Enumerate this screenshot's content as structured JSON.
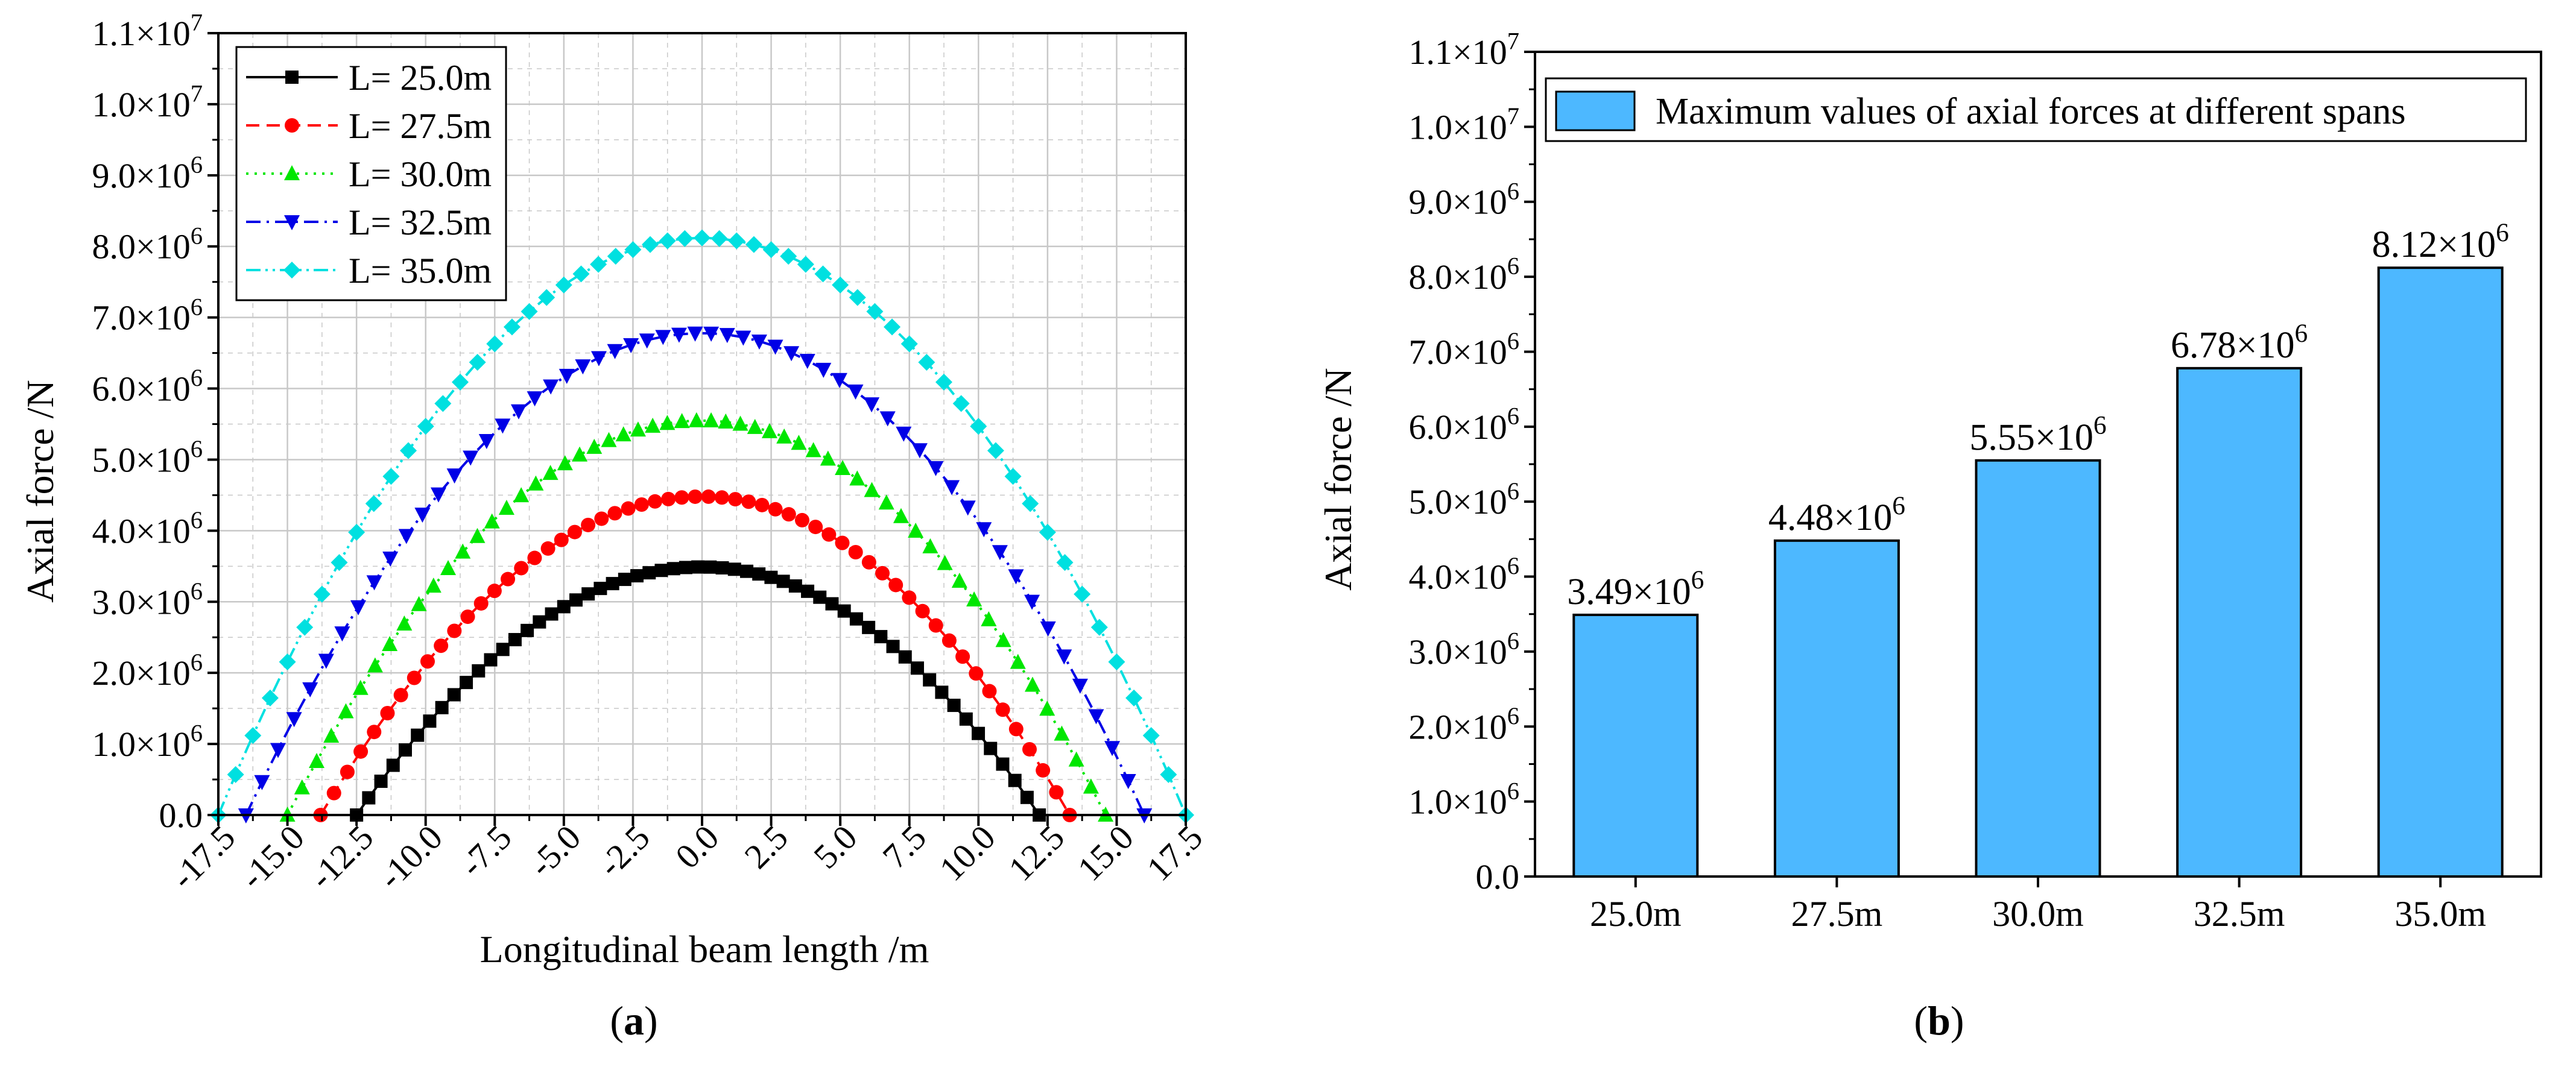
{
  "colors": {
    "grid": "#c8c8c8",
    "axis": "#000000",
    "bar_fill": "#4db8ff",
    "bar_stroke": "#000000",
    "series": [
      "#000000",
      "#ff0000",
      "#00e600",
      "#0000e6",
      "#00e0e0"
    ]
  },
  "panels": {
    "a_label": "a",
    "b_label": "b"
  },
  "chart_data": [
    {
      "id": "a",
      "type": "line",
      "xlabel": "Longitudinal beam length /m",
      "ylabel": "Axial force /N",
      "xlim": [
        -17.5,
        17.5
      ],
      "ylim": [
        0,
        11000000
      ],
      "xticks": [
        -17.5,
        -15.0,
        -12.5,
        -10.0,
        -7.5,
        -5.0,
        -2.5,
        0.0,
        2.5,
        5.0,
        7.5,
        10.0,
        12.5,
        15.0,
        17.5
      ],
      "xtick_labels": [
        "-17.5",
        "-15.0",
        "-12.5",
        "-10.0",
        "-7.5",
        "-5.0",
        "-2.5",
        "0.0",
        "2.5",
        "5.0",
        "7.5",
        "10.0",
        "12.5",
        "15.0",
        "17.5"
      ],
      "ytick_labels": [
        {
          "mant": "0.0",
          "exp": ""
        },
        {
          "mant": "1.0×10",
          "exp": "6"
        },
        {
          "mant": "2.0×10",
          "exp": "6"
        },
        {
          "mant": "3.0×10",
          "exp": "6"
        },
        {
          "mant": "4.0×10",
          "exp": "6"
        },
        {
          "mant": "5.0×10",
          "exp": "6"
        },
        {
          "mant": "6.0×10",
          "exp": "6"
        },
        {
          "mant": "7.0×10",
          "exp": "6"
        },
        {
          "mant": "8.0×10",
          "exp": "6"
        },
        {
          "mant": "9.0×10",
          "exp": "6"
        },
        {
          "mant": "1.0×10",
          "exp": "7"
        },
        {
          "mant": "1.1×10",
          "exp": "7"
        }
      ],
      "grid": true,
      "legend": "top-left",
      "series": [
        {
          "name": "L= 25.0m",
          "span": 25.0,
          "peak": 3490000,
          "x_zero": [
            -12.5,
            12.2
          ],
          "marker": "square",
          "dash": "solid"
        },
        {
          "name": "L= 27.5m",
          "span": 27.5,
          "peak": 4480000,
          "x_zero": [
            -13.8,
            13.3
          ],
          "marker": "circle",
          "dash": "dash"
        },
        {
          "name": "L= 30.0m",
          "span": 30.0,
          "peak": 5550000,
          "x_zero": [
            -15.0,
            14.6
          ],
          "marker": "triangle-up",
          "dash": "dot"
        },
        {
          "name": "L= 32.5m",
          "span": 32.5,
          "peak": 6780000,
          "x_zero": [
            -16.5,
            16.0
          ],
          "marker": "triangle-down",
          "dash": "dashdot"
        },
        {
          "name": "L= 35.0m",
          "span": 35.0,
          "peak": 8120000,
          "x_zero": [
            -17.5,
            17.5
          ],
          "marker": "diamond",
          "dash": "dashdotdot"
        }
      ]
    },
    {
      "id": "b",
      "type": "bar",
      "xlabel": "",
      "ylabel": "Axial force /N",
      "ylim": [
        0,
        11000000
      ],
      "categories": [
        "25.0m",
        "27.5m",
        "30.0m",
        "32.5m",
        "35.0m"
      ],
      "values": [
        3490000,
        4480000,
        5550000,
        6780000,
        8120000
      ],
      "data_labels": [
        {
          "mant": "3.49×10",
          "exp": "6"
        },
        {
          "mant": "4.48×10",
          "exp": "6"
        },
        {
          "mant": "5.55×10",
          "exp": "6"
        },
        {
          "mant": "6.78×10",
          "exp": "6"
        },
        {
          "mant": "8.12×10",
          "exp": "6"
        }
      ],
      "ytick_labels": [
        {
          "mant": "0.0",
          "exp": ""
        },
        {
          "mant": "1.0×10",
          "exp": "6"
        },
        {
          "mant": "2.0×10",
          "exp": "6"
        },
        {
          "mant": "3.0×10",
          "exp": "6"
        },
        {
          "mant": "4.0×10",
          "exp": "6"
        },
        {
          "mant": "5.0×10",
          "exp": "6"
        },
        {
          "mant": "6.0×10",
          "exp": "6"
        },
        {
          "mant": "7.0×10",
          "exp": "6"
        },
        {
          "mant": "8.0×10",
          "exp": "6"
        },
        {
          "mant": "9.0×10",
          "exp": "6"
        },
        {
          "mant": "1.0×10",
          "exp": "7"
        },
        {
          "mant": "1.1×10",
          "exp": "7"
        }
      ],
      "legend_label": "Maximum values of axial forces at different spans",
      "legend": "top-left",
      "grid": false
    }
  ]
}
